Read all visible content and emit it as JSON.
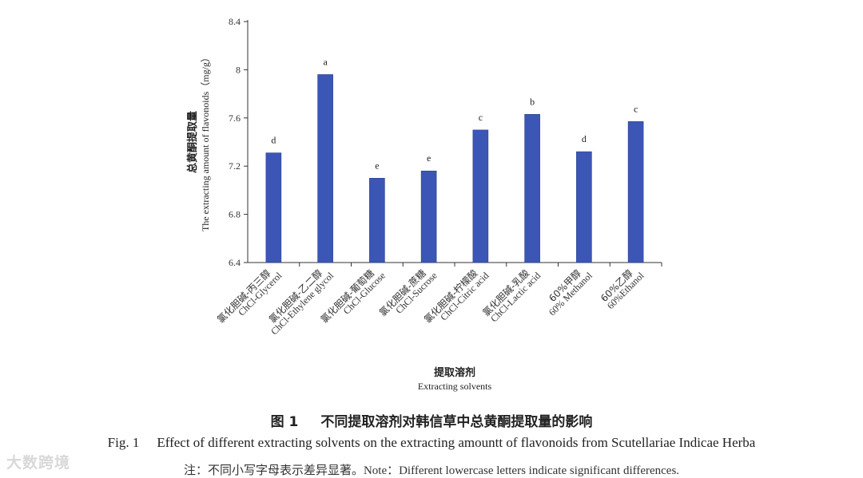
{
  "chart_data": {
    "type": "bar",
    "categories": [
      {
        "cn": "氯化胆碱-丙三醇",
        "en": "ChCl-Glycerol"
      },
      {
        "cn": "氯化胆碱-乙二醇",
        "en": "ChCl-Ethylene glycol"
      },
      {
        "cn": "氯化胆碱-葡萄糖",
        "en": "ChCl-Glucose"
      },
      {
        "cn": "氯化胆碱-蔗糖",
        "en": "ChCl-Sucrose"
      },
      {
        "cn": "氯化胆碱-柠檬酸",
        "en": "ChCl-Citric acid"
      },
      {
        "cn": "氯化胆碱-乳酸",
        "en": "ChCl-Lactic acid"
      },
      {
        "cn": "60%甲醇",
        "en": "60% Methanol"
      },
      {
        "cn": "60%乙醇",
        "en": "60%Ethanol"
      }
    ],
    "values": [
      7.31,
      7.96,
      7.1,
      7.16,
      7.5,
      7.63,
      7.32,
      7.57
    ],
    "significance": [
      "d",
      "a",
      "e",
      "e",
      "c",
      "b",
      "d",
      "c"
    ],
    "ylim": [
      6.4,
      8.4
    ],
    "yticks": [
      "6.4",
      "6.8",
      "7.2",
      "7.6",
      "8",
      "8.4"
    ],
    "ylabel_cn": "总黄酮提取量",
    "ylabel_en": "The extracting amount of flavonoids（mg/g）",
    "xlabel_cn": "提取溶剂",
    "xlabel_en": "Extracting solvents",
    "bar_color": "#3b56b5"
  },
  "caption": {
    "cn_number": "图 1",
    "cn_title": "不同提取溶剂对韩信草中总黄酮提取量的影响",
    "en_number": "Fig. 1",
    "en_title": "Effect of different extracting solvents on the extracting amountt of flavonoids from Scutellariae Indicae Herba",
    "note": "注：不同小写字母表示差异显著。Note：Different lowercase letters indicate significant differences."
  },
  "watermark": "大数跨境"
}
